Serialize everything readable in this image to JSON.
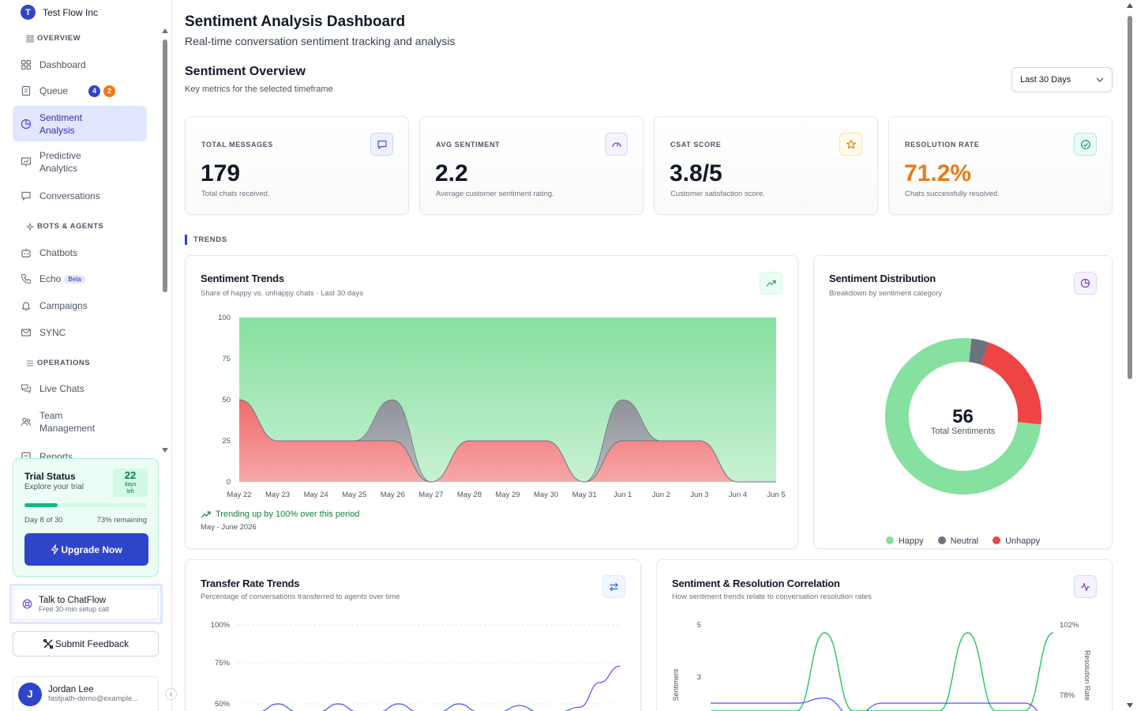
{
  "org": {
    "initial": "T",
    "name": "Test Flow Inc"
  },
  "sidebar": {
    "sections": {
      "overview": "OVERVIEW",
      "bots": "BOTS & AGENTS",
      "operations": "OPERATIONS"
    },
    "items": {
      "dashboard": "Dashboard",
      "queue": "Queue",
      "queue_badge_1": "4",
      "queue_badge_2": "2",
      "sentiment": "Sentiment Analysis",
      "predictive": "Predictive Analytics",
      "conversations": "Conversations",
      "chatbots": "Chatbots",
      "echo": "Echo",
      "echo_badge": "Beta",
      "campaigns": "Campaigns",
      "sync": "SYNC",
      "live_chats": "Live Chats",
      "team": "Team Management",
      "reports": "Reports"
    },
    "trial": {
      "title": "Trial Status",
      "subtitle": "Explore your trial",
      "days": "22",
      "days_label": "days left",
      "progress": 0.27,
      "day_text": "Day 8 of 30",
      "remaining": "73% remaining",
      "upgrade": "Upgrade Now"
    },
    "talk": {
      "title": "Talk to ChatFlow",
      "subtitle": "Free 30-min setup call"
    },
    "feedback": "Submit Feedback",
    "user": {
      "initial": "J",
      "name": "Jordan Lee",
      "email": "fastpath-demo@example..."
    }
  },
  "header": {
    "title": "Sentiment Analysis Dashboard",
    "subtitle": "Real-time conversation sentiment tracking and analysis"
  },
  "overview": {
    "title": "Sentiment Overview",
    "subtitle": "Key metrics for the selected timeframe",
    "range": "Last 30 Days"
  },
  "metrics": [
    {
      "label": "TOTAL MESSAGES",
      "value": "179",
      "desc": "Total chats received.",
      "color": "#111827"
    },
    {
      "label": "AVG SENTIMENT",
      "value": "2.2",
      "desc": "Average customer sentiment rating.",
      "color": "#111827"
    },
    {
      "label": "CSAT SCORE",
      "value": "3.8/5",
      "desc": "Customer satisfaction score.",
      "color": "#111827"
    },
    {
      "label": "RESOLUTION RATE",
      "value": "71.2%",
      "desc": "Chats successfully resolved.",
      "color": "#ea7a13"
    }
  ],
  "trends_label": "TRENDS",
  "sentiment_trends": {
    "title": "Sentiment Trends",
    "subtitle": "Share of happy vs. unhappy chats · Last 30 days",
    "note": "Trending up by 100% over this period",
    "period": "May - June 2026"
  },
  "distribution": {
    "title": "Sentiment Distribution",
    "subtitle": "Breakdown by sentiment category",
    "total": "56",
    "total_label": "Total Sentiments",
    "legend": [
      "Happy",
      "Neutral",
      "Unhappy"
    ]
  },
  "transfer": {
    "title": "Transfer Rate Trends",
    "subtitle": "Percentage of conversations transferred to agents over time"
  },
  "correlation": {
    "title": "Sentiment & Resolution Correlation",
    "subtitle": "How sentiment trends relate to conversation resolution rates"
  },
  "chart_data": [
    {
      "type": "area",
      "title": "Sentiment Trends",
      "categories": [
        "May 22",
        "May 23",
        "May 24",
        "May 25",
        "May 26",
        "May 27",
        "May 28",
        "May 29",
        "May 30",
        "May 31",
        "Jun 1",
        "Jun 2",
        "Jun 3",
        "Jun 4",
        "Jun 5"
      ],
      "series": [
        {
          "name": "Unhappy",
          "values": [
            50,
            25,
            25,
            25,
            25,
            0,
            25,
            25,
            25,
            0,
            25,
            25,
            25,
            0,
            0
          ]
        },
        {
          "name": "Neutral",
          "values": [
            0,
            0,
            0,
            0,
            25,
            0,
            0,
            0,
            0,
            0,
            25,
            0,
            0,
            0,
            0
          ]
        },
        {
          "name": "Happy",
          "values": [
            50,
            75,
            75,
            75,
            50,
            100,
            75,
            75,
            75,
            100,
            50,
            75,
            75,
            100,
            100
          ]
        }
      ],
      "ylim": [
        0,
        100
      ],
      "yticks": [
        0,
        25,
        50,
        75,
        100
      ],
      "colors": {
        "Happy": "#86e0a0",
        "Neutral": "#9ca3af",
        "Unhappy": "#ef6b6b"
      }
    },
    {
      "type": "pie",
      "title": "Sentiment Distribution",
      "labels": [
        "Happy",
        "Neutral",
        "Unhappy"
      ],
      "values": [
        42,
        2,
        12
      ],
      "colors": [
        "#86e0a0",
        "#6b7280",
        "#ef4444"
      ]
    },
    {
      "type": "line",
      "title": "Transfer Rate Trends",
      "yticks": [
        "100%",
        "75%",
        "50%"
      ],
      "series": [
        {
          "values": [
            45,
            45,
            50,
            45,
            45,
            50,
            45,
            45,
            50,
            45,
            45,
            50,
            45,
            45,
            49,
            45,
            45,
            48,
            63,
            73
          ]
        }
      ],
      "color": "#6366f1"
    },
    {
      "type": "line",
      "title": "Sentiment & Resolution Correlation",
      "ylabel": "Sentiment",
      "y2label": "Resolution Rate",
      "yticks": [
        5,
        3
      ],
      "y2ticks": [
        "102%",
        "78%"
      ],
      "series": [
        {
          "values": [
            2,
            2,
            2,
            2,
            5,
            2,
            2,
            2,
            2,
            5,
            2,
            2,
            5
          ],
          "color": "#22c55e"
        },
        {
          "values": [
            2.3,
            2.3,
            2.3,
            2.3,
            2.5,
            1.8,
            2.3,
            2.3,
            2.3,
            2.3,
            2.3,
            2.3,
            1.5
          ],
          "color": "#6366f1"
        }
      ]
    }
  ]
}
